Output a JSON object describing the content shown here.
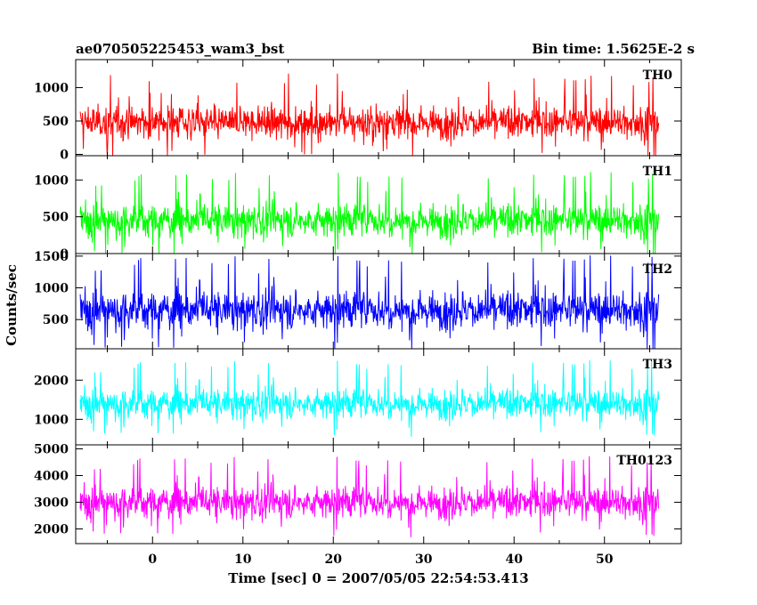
{
  "header": {
    "title": "ae070505225453_wam3_bst",
    "bin_time": "Bin time: 1.5625E-2 s"
  },
  "chart_data": {
    "type": "line",
    "xlabel": "Time [sec] 0 = 2007/05/05 22:54:53.413",
    "ylabel": "Counts/sec",
    "xlim": [
      -8.5,
      58.5
    ],
    "x_ticks": [
      0,
      10,
      20,
      30,
      40,
      50
    ],
    "x_range_data": [
      -8.0,
      56.0
    ],
    "grid": false,
    "panels": [
      {
        "name": "TH0",
        "color": "#ff0000",
        "ylim": [
          -20,
          1420
        ],
        "yticks": [
          0,
          500,
          1000
        ],
        "mean": 480,
        "spread": 170,
        "max_value": 1400
      },
      {
        "name": "TH1",
        "color": "#00ff00",
        "ylim": [
          0,
          1330
        ],
        "yticks": [
          0,
          500,
          1000
        ],
        "mean": 450,
        "spread": 160,
        "max_value": 1300
      },
      {
        "name": "TH2",
        "color": "#0000ff",
        "ylim": [
          40,
          1540
        ],
        "yticks": [
          500,
          1000,
          1500
        ],
        "mean": 650,
        "spread": 210,
        "max_value": 1530
      },
      {
        "name": "TH3",
        "color": "#00ffff",
        "ylim": [
          350,
          2800
        ],
        "yticks": [
          1000,
          2000
        ],
        "mean": 1400,
        "spread": 270,
        "max_value": 2800
      },
      {
        "name": "TH0123",
        "color": "#ff00ff",
        "ylim": [
          1450,
          5150
        ],
        "yticks": [
          2000,
          3000,
          4000,
          5000
        ],
        "mean": 3000,
        "spread": 420,
        "max_value": 5100
      }
    ]
  }
}
